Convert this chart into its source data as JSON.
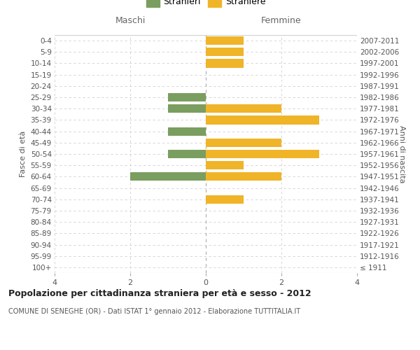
{
  "age_groups": [
    "100+",
    "95-99",
    "90-94",
    "85-89",
    "80-84",
    "75-79",
    "70-74",
    "65-69",
    "60-64",
    "55-59",
    "50-54",
    "45-49",
    "40-44",
    "35-39",
    "30-34",
    "25-29",
    "20-24",
    "15-19",
    "10-14",
    "5-9",
    "0-4"
  ],
  "birth_years": [
    "≤ 1911",
    "1912-1916",
    "1917-1921",
    "1922-1926",
    "1927-1931",
    "1932-1936",
    "1937-1941",
    "1942-1946",
    "1947-1951",
    "1952-1956",
    "1957-1961",
    "1962-1966",
    "1967-1971",
    "1972-1976",
    "1977-1981",
    "1982-1986",
    "1987-1991",
    "1992-1996",
    "1997-2001",
    "2002-2006",
    "2007-2011"
  ],
  "maschi": [
    0,
    0,
    0,
    0,
    0,
    0,
    0,
    0,
    2,
    0,
    1,
    0,
    1,
    0,
    1,
    1,
    0,
    0,
    0,
    0,
    0
  ],
  "femmine": [
    0,
    0,
    0,
    0,
    0,
    0,
    1,
    0,
    2,
    1,
    3,
    2,
    0,
    3,
    2,
    0,
    0,
    0,
    1,
    1,
    1
  ],
  "maschi_color": "#7a9e5f",
  "femmine_color": "#f0b429",
  "title": "Popolazione per cittadinanza straniera per età e sesso - 2012",
  "subtitle": "COMUNE DI SENEGHE (OR) - Dati ISTAT 1° gennaio 2012 - Elaborazione TUTTITALIA.IT",
  "legend_maschi": "Stranieri",
  "legend_femmine": "Straniere",
  "xlabel_left": "Maschi",
  "xlabel_right": "Femmine",
  "ylabel_left": "Fasce di età",
  "ylabel_right": "Anni di nascita",
  "xlim": 4,
  "bg_color": "#ffffff",
  "grid_color": "#d0d0d0",
  "bar_height": 0.75
}
